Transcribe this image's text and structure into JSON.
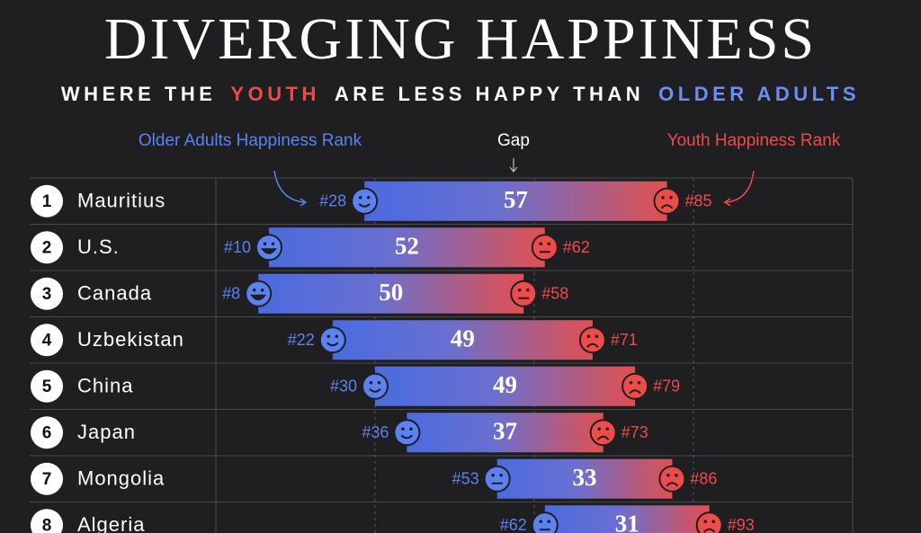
{
  "chart_data": {
    "type": "dumbbell",
    "title": "DIVERGING HAPPINESS",
    "subtitle_parts": [
      "WHERE THE",
      "YOUTH",
      "ARE LESS HAPPY THAN",
      "OLDER ADULTS"
    ],
    "ranks": [
      1,
      2,
      3,
      4,
      5,
      6,
      7,
      8
    ],
    "categories": [
      "Mauritius",
      "U.S.",
      "Canada",
      "Uzbekistan",
      "China",
      "Japan",
      "Mongolia",
      "Algeria"
    ],
    "series": [
      {
        "name": "Older Adults Happiness Rank",
        "color": "#5b82f0",
        "values": [
          28,
          10,
          8,
          22,
          30,
          36,
          53,
          62
        ],
        "value_labels": [
          "#28",
          "#10",
          "#8",
          "#22",
          "#30",
          "#36",
          "#53",
          "#62"
        ]
      },
      {
        "name": "Youth Happiness Rank",
        "color": "#ee4b4b",
        "values": [
          85,
          62,
          58,
          71,
          79,
          73,
          86,
          93
        ],
        "value_labels": [
          "#85",
          "#62",
          "#58",
          "#71",
          "#79",
          "#73",
          "#86",
          "#93"
        ]
      }
    ],
    "gap": {
      "name": "Gap",
      "values": [
        57,
        52,
        50,
        49,
        49,
        37,
        33,
        31
      ]
    },
    "xlim": [
      0,
      120
    ],
    "xticks": [
      30,
      60,
      90
    ],
    "grid": true
  }
}
